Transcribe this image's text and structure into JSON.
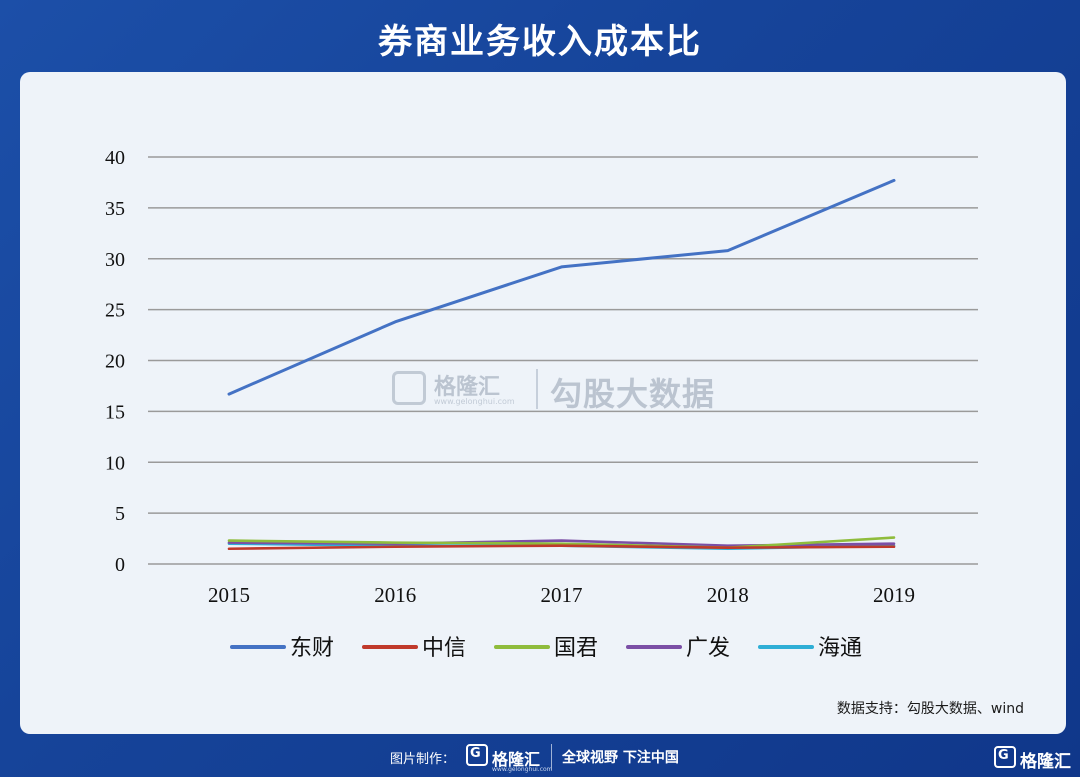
{
  "header": {
    "title": "券商业务收入成本比"
  },
  "watermark": {
    "brand": "格隆汇",
    "url": "www.gelonghui.com",
    "text": "勾股大数据"
  },
  "source": "数据支持：勾股大数据、wind",
  "footer": {
    "made_label": "图片制作：",
    "logo_letter": "G",
    "brand": "格隆汇",
    "url": "www.gelonghui.com",
    "slogan": "全球视野 下注中国",
    "corner_brand": "格隆汇"
  },
  "colors": {
    "background": "#1c4fa8",
    "card": "#eef3f9",
    "grid": "#9a9a9a"
  },
  "chart_data": {
    "type": "line",
    "title": "",
    "xlabel": "",
    "ylabel": "",
    "categories": [
      "2015",
      "2016",
      "2017",
      "2018",
      "2019"
    ],
    "ylim": [
      0,
      40
    ],
    "yticks": [
      "0",
      "5",
      "10",
      "15",
      "20",
      "25",
      "30",
      "35",
      "40"
    ],
    "grid": true,
    "legend_position": "bottom",
    "series": [
      {
        "name": "东财",
        "color": "#4472c4",
        "values": [
          16.7,
          23.8,
          29.2,
          30.8,
          37.7
        ]
      },
      {
        "name": "中信",
        "color": "#c0392b",
        "values": [
          1.5,
          1.7,
          1.8,
          1.6,
          1.7
        ]
      },
      {
        "name": "国君",
        "color": "#8fbc3c",
        "values": [
          2.3,
          2.1,
          2.0,
          1.6,
          2.6
        ]
      },
      {
        "name": "广发",
        "color": "#7b4fa6",
        "values": [
          2.1,
          2.0,
          2.3,
          1.8,
          2.0
        ]
      },
      {
        "name": "海通",
        "color": "#2eaed6",
        "values": [
          2.0,
          1.8,
          1.8,
          1.5,
          1.8
        ]
      }
    ]
  }
}
